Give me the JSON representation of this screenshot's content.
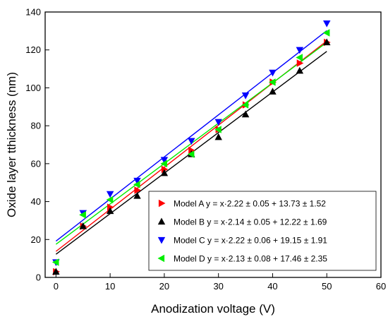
{
  "chart_data": {
    "type": "scatter",
    "xlabel": "Anodization voltage (V)",
    "ylabel": "Oxide layer tthickness (nm)",
    "xlim": [
      -2,
      60
    ],
    "ylim": [
      0,
      140
    ],
    "xticks": [
      0,
      10,
      20,
      30,
      40,
      50,
      60
    ],
    "yticks": [
      0,
      20,
      40,
      60,
      80,
      100,
      120,
      140
    ],
    "legend_position": "bottom-right",
    "grid": false,
    "series": [
      {
        "name": "Model A y = x·2.22 ± 0.05 + 13.73 ± 1.52",
        "marker": "triangle-right",
        "color": "#ff0000",
        "x": [
          0,
          5,
          10,
          15,
          20,
          25,
          30,
          35,
          40,
          45,
          50
        ],
        "y": [
          3,
          27,
          37,
          46,
          57,
          67,
          78,
          91,
          103,
          113,
          124
        ],
        "fit": {
          "slope": 2.22,
          "intercept": 13.73
        }
      },
      {
        "name": "Model B y = x·2.14 ± 0.05 + 12.22 ± 1.69",
        "marker": "triangle-up",
        "color": "#000000",
        "x": [
          0,
          5,
          10,
          15,
          20,
          25,
          30,
          35,
          40,
          45,
          50
        ],
        "y": [
          3,
          27,
          35,
          43,
          55,
          65,
          74,
          86,
          98,
          109,
          124
        ],
        "fit": {
          "slope": 2.14,
          "intercept": 12.22
        }
      },
      {
        "name": "Model C y = x·2.22 ± 0.06 + 19.15 ± 1.91",
        "marker": "triangle-down",
        "color": "#0000ff",
        "x": [
          0,
          5,
          10,
          15,
          20,
          25,
          30,
          35,
          40,
          45,
          50
        ],
        "y": [
          8,
          34,
          44,
          51,
          62,
          72,
          82,
          96,
          108,
          120,
          134
        ],
        "fit": {
          "slope": 2.22,
          "intercept": 19.15
        }
      },
      {
        "name": "Model D y = x·2.13 ± 0.08 + 17.46 ± 2.35",
        "marker": "triangle-left",
        "color": "#00ee00",
        "x": [
          0,
          5,
          10,
          15,
          20,
          25,
          30,
          35,
          40,
          45,
          50
        ],
        "y": [
          8,
          33,
          41,
          49,
          60,
          65,
          78,
          91,
          103,
          116,
          129
        ],
        "fit": {
          "slope": 2.13,
          "intercept": 17.46
        }
      }
    ]
  }
}
